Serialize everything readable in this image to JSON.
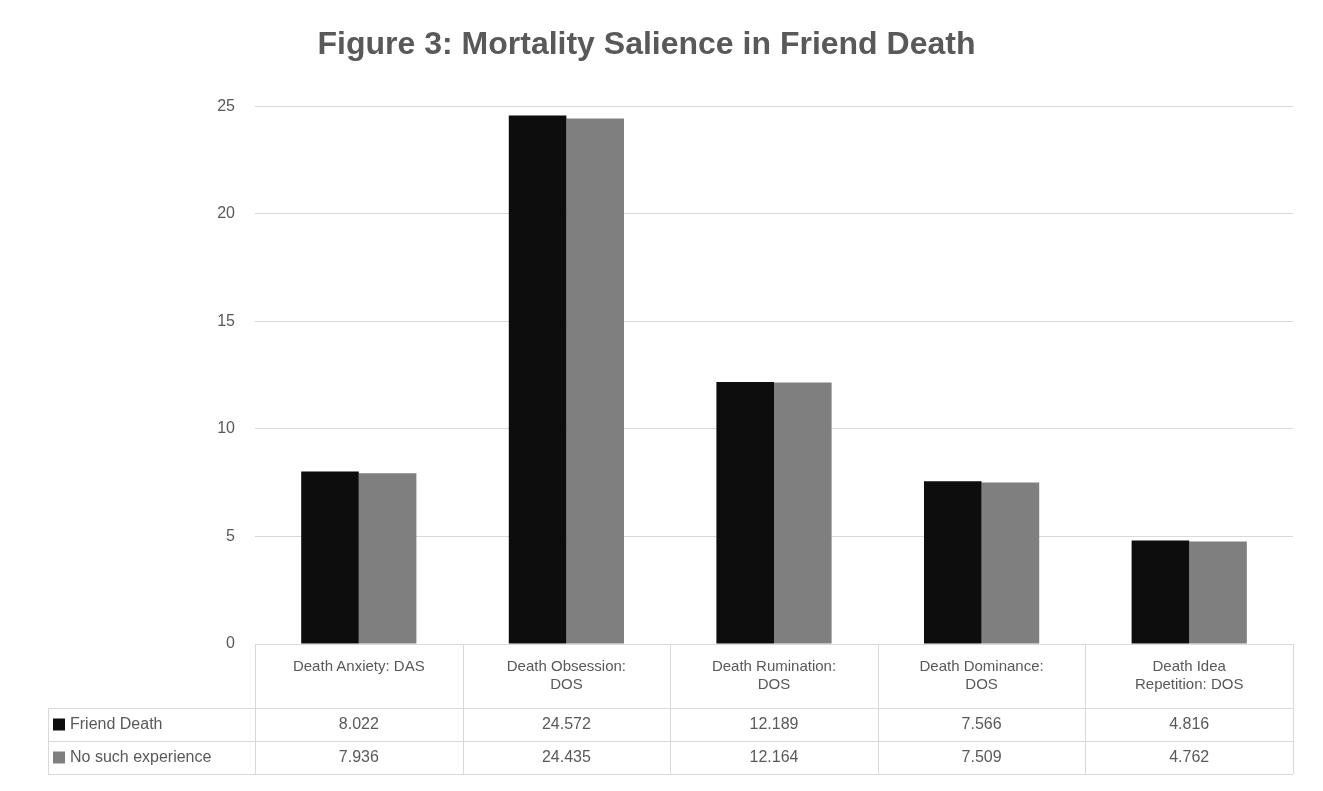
{
  "chart_data": {
    "type": "bar",
    "title": "Figure 3: Mortality Salience in Friend Death",
    "categories": [
      "Death Anxiety: DAS",
      "Death Obsession: DOS",
      "Death Rumination: DOS",
      "Death Dominance: DOS",
      "Death Idea Repetition: DOS"
    ],
    "series": [
      {
        "name": "Friend Death",
        "color": "#0d0d0d",
        "values": [
          8.022,
          24.572,
          12.189,
          7.566,
          4.816
        ]
      },
      {
        "name": "No such experience",
        "color": "#7f7f7f",
        "values": [
          7.936,
          24.435,
          12.164,
          7.509,
          4.762
        ]
      }
    ],
    "ylim": [
      0,
      25
    ],
    "yticks": [
      0,
      5,
      10,
      15,
      20,
      25
    ],
    "grid": "y",
    "legend": "bottom",
    "data_labels": true
  }
}
